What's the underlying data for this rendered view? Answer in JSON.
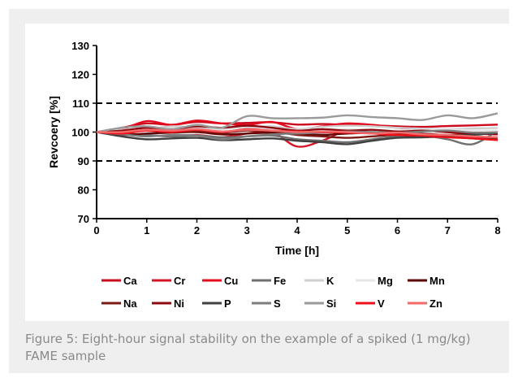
{
  "caption": "Figure 5: Eight-hour signal stability on the example of a spiked (1 mg/kg) FAME sample",
  "chart_data": {
    "type": "line",
    "title": "",
    "xlabel": "Time [h]",
    "ylabel": "Revcoery [%]",
    "xlim": [
      0,
      8
    ],
    "ylim": [
      70,
      130
    ],
    "xticks": [
      0,
      1,
      2,
      3,
      4,
      5,
      6,
      7,
      8
    ],
    "yticks": [
      70,
      80,
      90,
      100,
      110,
      120,
      130
    ],
    "grid": false,
    "legend_position": "bottom",
    "reference_lines": [
      90,
      110
    ],
    "x": [
      0,
      0.5,
      1,
      1.5,
      2,
      2.5,
      3,
      3.5,
      4,
      4.5,
      5,
      5.5,
      6,
      6.5,
      7,
      7.5,
      8
    ],
    "series": [
      {
        "name": "Ca",
        "color": "#cc0a1e",
        "values": [
          100,
          101.5,
          103,
          102.5,
          103.5,
          103,
          103.2,
          103.4,
          102.6,
          102.8,
          102.5,
          102.3,
          102,
          101.8,
          102.1,
          102.3,
          102.6
        ]
      },
      {
        "name": "Cr",
        "color": "#d51426",
        "values": [
          100,
          99.5,
          99,
          98.5,
          99,
          98.2,
          99.5,
          100,
          95,
          97,
          100.5,
          99.5,
          100,
          99,
          98.5,
          98,
          98.2
        ]
      },
      {
        "name": "Cu",
        "color": "#e30b1d",
        "values": [
          100,
          101,
          103.8,
          102.5,
          104,
          103,
          102.5,
          103.5,
          101,
          102,
          103,
          102.5,
          101.5,
          101,
          100,
          99.5,
          99.2
        ]
      },
      {
        "name": "Fe",
        "color": "#6f6f6f",
        "values": [
          100,
          99.5,
          99,
          98.5,
          98.8,
          98.2,
          98.5,
          98.8,
          97.5,
          97,
          96.5,
          97.5,
          98.5,
          98.8,
          97.5,
          95.8,
          100.5
        ]
      },
      {
        "name": "K",
        "color": "#cfcfcf",
        "values": [
          100,
          100.5,
          101,
          102,
          101.5,
          101,
          101.5,
          102,
          101,
          101.8,
          102.2,
          102,
          101.5,
          101.2,
          101,
          101.3,
          101.4
        ]
      },
      {
        "name": "Mg",
        "color": "#e6e6e6",
        "values": [
          100,
          100.8,
          101.2,
          101,
          100.8,
          101,
          101.2,
          101.1,
          100.8,
          100.9,
          101,
          100.7,
          100.5,
          100.8,
          100.9,
          100.6,
          100.5
        ]
      },
      {
        "name": "Mn",
        "color": "#5e0000",
        "values": [
          100,
          99,
          99.5,
          99.8,
          100,
          99.2,
          99.5,
          99.8,
          99.5,
          99,
          99.5,
          99.7,
          99.2,
          99.4,
          99,
          99.3,
          99.5
        ]
      },
      {
        "name": "Na",
        "color": "#7b1a14",
        "values": [
          100,
          99.8,
          100.5,
          100,
          100.2,
          99.8,
          100.5,
          100.2,
          99,
          98.5,
          98,
          98.5,
          99,
          98.2,
          98.5,
          97.8,
          97.5
        ]
      },
      {
        "name": "Ni",
        "color": "#8c0a10",
        "values": [
          100,
          100.5,
          101.5,
          101,
          102,
          101.5,
          102.2,
          101.5,
          100.5,
          101,
          100.5,
          100.8,
          100.2,
          100.5,
          100,
          99.8,
          99.6
        ]
      },
      {
        "name": "P",
        "color": "#404040",
        "values": [
          100,
          98.5,
          97.5,
          97.8,
          98,
          97.2,
          97.5,
          97.8,
          97,
          96.5,
          95.8,
          97,
          98,
          98.2,
          98.8,
          99,
          99.8
        ]
      },
      {
        "name": "S",
        "color": "#7d7d7d",
        "values": [
          100,
          99.2,
          98.5,
          99,
          98.8,
          97.5,
          98.5,
          99.2,
          99.5,
          99.8,
          100.2,
          100,
          99.8,
          100.2,
          100.5,
          99.8,
          99.9
        ]
      },
      {
        "name": "Si",
        "color": "#9a9a9a",
        "values": [
          100,
          101.5,
          102,
          101,
          102.5,
          101.5,
          105.5,
          104.8,
          104.8,
          105,
          105.8,
          105.2,
          104.8,
          104.2,
          105.8,
          104.8,
          106.5
        ]
      },
      {
        "name": "V",
        "color": "#f0101c",
        "values": [
          100,
          99.5,
          100.5,
          100,
          100.8,
          100,
          101,
          100.5,
          100.2,
          100,
          99.8,
          99.5,
          99,
          98.8,
          98.2,
          97.8,
          97.2
        ]
      },
      {
        "name": "Zn",
        "color": "#f26a6a",
        "values": [
          100,
          100,
          100.8,
          100.5,
          101,
          100.2,
          100.8,
          100.5,
          100,
          100.2,
          100,
          99.5,
          99.8,
          99.2,
          99,
          98.5,
          98.2
        ]
      }
    ]
  }
}
